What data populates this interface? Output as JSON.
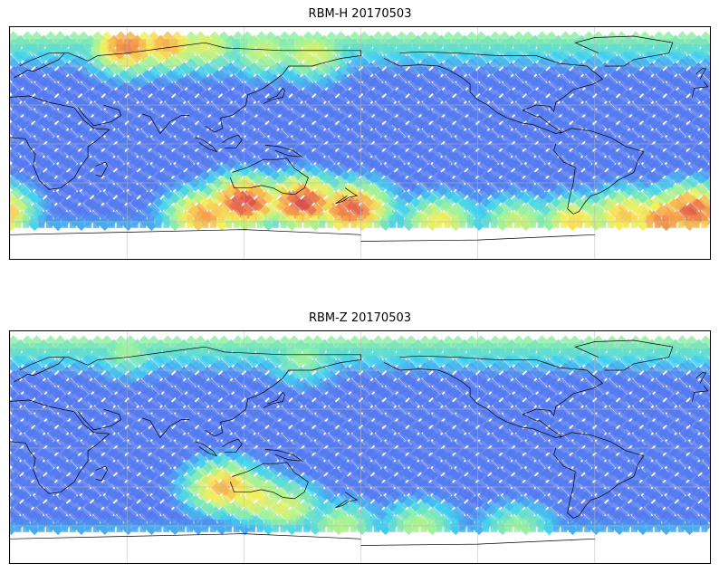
{
  "panels": [
    {
      "title": "RBM-H 20170503",
      "hot_zones": [
        {
          "lon": 60,
          "lat": 75,
          "level": 0.85
        },
        {
          "lon": 80,
          "lat": 77,
          "level": 0.75
        },
        {
          "lon": 100,
          "lat": 76,
          "level": 0.55
        },
        {
          "lon": 130,
          "lat": 72,
          "level": 0.5
        },
        {
          "lon": 155,
          "lat": 70,
          "level": 0.55
        },
        {
          "lon": -10,
          "lat": -52,
          "level": 0.95
        },
        {
          "lon": -25,
          "lat": -58,
          "level": 0.85
        },
        {
          "lon": -45,
          "lat": -55,
          "level": 0.7
        },
        {
          "lon": -70,
          "lat": -60,
          "level": 0.65
        },
        {
          "lon": -100,
          "lat": -60,
          "level": 0.5
        },
        {
          "lon": -140,
          "lat": -60,
          "level": 0.6
        },
        {
          "lon": 120,
          "lat": -45,
          "level": 1.0
        },
        {
          "lon": 150,
          "lat": -45,
          "level": 1.0
        },
        {
          "lon": 175,
          "lat": -50,
          "level": 0.95
        },
        {
          "lon": 100,
          "lat": -55,
          "level": 0.8
        }
      ]
    },
    {
      "title": "RBM-Z 20170503",
      "hot_zones": [
        {
          "lon": 110,
          "lat": -30,
          "level": 0.75
        },
        {
          "lon": 125,
          "lat": -38,
          "level": 0.6
        },
        {
          "lon": 140,
          "lat": -45,
          "level": 0.55
        },
        {
          "lon": -150,
          "lat": -60,
          "level": 0.45
        },
        {
          "lon": -100,
          "lat": -62,
          "level": 0.4
        },
        {
          "lon": 60,
          "lat": 75,
          "level": 0.4
        },
        {
          "lon": 150,
          "lat": 70,
          "level": 0.4
        },
        {
          "lon": 170,
          "lat": -60,
          "level": 0.45
        }
      ]
    }
  ],
  "colors": {
    "low": "#5a5cf0",
    "mid_low": "#3fd0f0",
    "mid": "#9cf29c",
    "mid_high": "#f6ee5a",
    "high": "#f59a4a",
    "max": "#d94848",
    "land_outline": "#000000",
    "grid": "#b8b8b8"
  }
}
